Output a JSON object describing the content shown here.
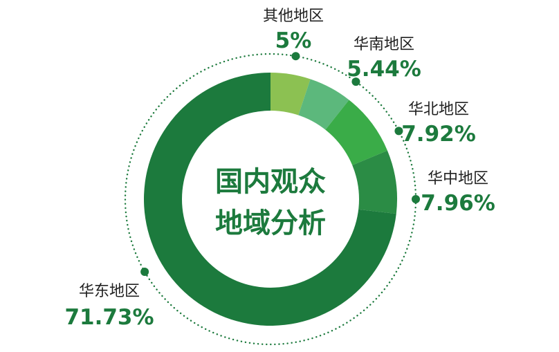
{
  "chart_data": {
    "type": "pie",
    "title": "国内观众地域分析",
    "title_lines": [
      "国内观众",
      "地域分析"
    ],
    "categories": [
      "其他地区",
      "华南地区",
      "华北地区",
      "华中地区",
      "华东地区"
    ],
    "values": [
      5,
      5.44,
      7.92,
      7.96,
      71.73
    ],
    "value_labels": [
      "5%",
      "5.44%",
      "7.92%",
      "7.96%",
      "71.73%"
    ],
    "colors": [
      "#8cc152",
      "#5cb87c",
      "#3aac48",
      "#2b8c45",
      "#1c7a3d"
    ],
    "accent_color": "#1c7a3d",
    "leader_dot_color": "#1c7a3d",
    "legend": "none",
    "grid": false
  }
}
